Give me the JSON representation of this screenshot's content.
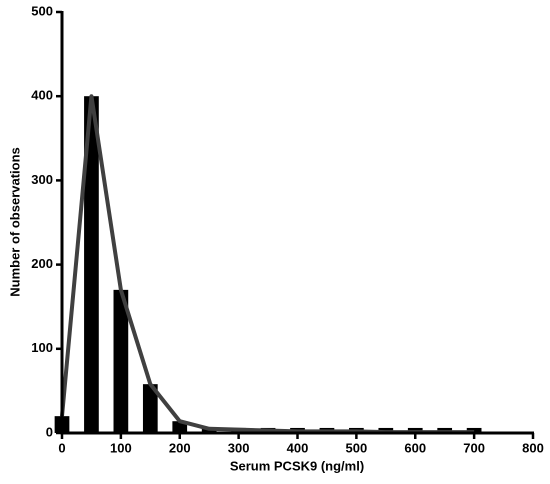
{
  "chart_data": {
    "type": "bar",
    "x_label": "Serum PCSK9 (ng/ml)",
    "y_label": "Number of observations",
    "x": [
      0,
      50,
      100,
      150,
      200,
      250,
      300,
      350,
      400,
      450,
      500,
      550,
      600,
      650,
      700
    ],
    "series": [
      {
        "type": "bar",
        "color": "#000000",
        "values": [
          20,
          400,
          170,
          58,
          14,
          6,
          6,
          6,
          6,
          6,
          6,
          6,
          6,
          6,
          6
        ]
      },
      {
        "type": "line",
        "color": "#404040",
        "values": [
          20,
          400,
          170,
          58,
          14,
          5,
          4,
          3,
          2,
          2,
          2,
          1,
          1,
          1,
          1
        ]
      }
    ],
    "xlim": [
      0,
      800
    ],
    "xticks": [
      0,
      100,
      200,
      300,
      400,
      500,
      600,
      700,
      800
    ],
    "ylim": [
      0,
      500
    ],
    "yticks": [
      0,
      100,
      200,
      300,
      400,
      500
    ]
  }
}
